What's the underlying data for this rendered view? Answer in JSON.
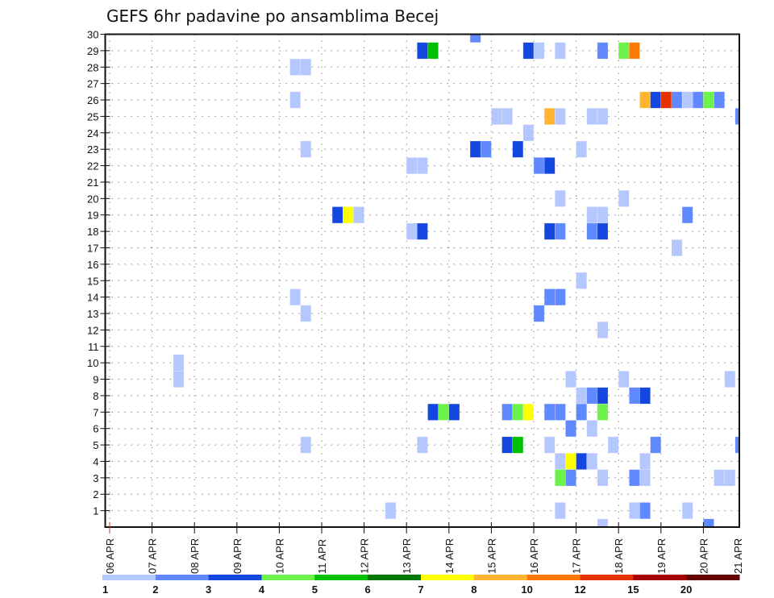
{
  "chart_data": {
    "type": "heatmap",
    "title": "GEFS 6hr padavine po ansamblima Becej",
    "xlabel": "",
    "ylabel": "",
    "x_unit": "6-hour step from 06 APR 00",
    "y_unit": "ensemble member",
    "xlim_days": [
      0,
      15
    ],
    "ylim": [
      0,
      30
    ],
    "grid": true,
    "xticks": [
      "06 APR",
      "07 APR",
      "08 APR",
      "09 APR",
      "10 APR",
      "11 APR",
      "12 APR",
      "13 APR",
      "14 APR",
      "15 APR",
      "16 APR",
      "17 APR",
      "18 APR",
      "19 APR",
      "20 APR",
      "21 APR"
    ],
    "yticks": [
      1,
      2,
      3,
      4,
      5,
      6,
      7,
      8,
      9,
      10,
      11,
      12,
      13,
      14,
      15,
      16,
      17,
      18,
      19,
      20,
      21,
      22,
      23,
      24,
      25,
      26,
      27,
      28,
      29,
      30
    ],
    "colorbar": {
      "levels": [
        1,
        2,
        3,
        4,
        5,
        6,
        7,
        8,
        10,
        12,
        15,
        20
      ],
      "colors": [
        "#b4c8ff",
        "#6088ff",
        "#1446e0",
        "#6cf24a",
        "#00be00",
        "#007800",
        "#ffff00",
        "#ffb432",
        "#ff7800",
        "#e63200",
        "#a50000",
        "#640000"
      ],
      "placement": "bottom"
    },
    "cells_columns": [
      "member",
      "step",
      "value_class"
    ],
    "cells": [
      [
        30,
        34,
        2
      ],
      [
        29,
        29,
        3
      ],
      [
        29,
        30,
        5
      ],
      [
        29,
        39,
        3
      ],
      [
        29,
        40,
        1
      ],
      [
        29,
        42,
        1
      ],
      [
        29,
        46,
        2
      ],
      [
        29,
        48,
        4
      ],
      [
        29,
        49,
        10
      ],
      [
        28,
        17,
        1
      ],
      [
        28,
        18,
        1
      ],
      [
        26,
        17,
        1
      ],
      [
        26,
        50,
        8
      ],
      [
        26,
        51,
        3
      ],
      [
        26,
        52,
        12
      ],
      [
        26,
        53,
        2
      ],
      [
        26,
        54,
        1
      ],
      [
        26,
        55,
        2
      ],
      [
        26,
        56,
        4
      ],
      [
        26,
        57,
        2
      ],
      [
        25,
        36,
        1
      ],
      [
        25,
        37,
        1
      ],
      [
        25,
        41,
        8
      ],
      [
        25,
        42,
        1
      ],
      [
        25,
        45,
        1
      ],
      [
        25,
        46,
        1
      ],
      [
        25,
        59,
        2
      ],
      [
        24,
        39,
        1
      ],
      [
        23,
        18,
        1
      ],
      [
        23,
        34,
        3
      ],
      [
        23,
        35,
        2
      ],
      [
        23,
        38,
        3
      ],
      [
        23,
        44,
        1
      ],
      [
        22,
        28,
        1
      ],
      [
        22,
        29,
        1
      ],
      [
        22,
        40,
        2
      ],
      [
        22,
        41,
        3
      ],
      [
        20,
        42,
        1
      ],
      [
        20,
        48,
        1
      ],
      [
        19,
        21,
        3
      ],
      [
        19,
        22,
        7
      ],
      [
        19,
        23,
        1
      ],
      [
        19,
        45,
        1
      ],
      [
        19,
        46,
        1
      ],
      [
        19,
        54,
        2
      ],
      [
        18,
        28,
        1
      ],
      [
        18,
        29,
        3
      ],
      [
        18,
        41,
        3
      ],
      [
        18,
        42,
        2
      ],
      [
        18,
        45,
        2
      ],
      [
        18,
        46,
        3
      ],
      [
        17,
        53,
        1
      ],
      [
        15,
        44,
        1
      ],
      [
        14,
        17,
        1
      ],
      [
        14,
        41,
        2
      ],
      [
        14,
        42,
        2
      ],
      [
        13,
        18,
        1
      ],
      [
        13,
        40,
        2
      ],
      [
        12,
        46,
        1
      ],
      [
        10,
        6,
        1
      ],
      [
        9,
        6,
        1
      ],
      [
        9,
        43,
        1
      ],
      [
        9,
        48,
        1
      ],
      [
        9,
        58,
        1
      ],
      [
        8,
        44,
        1
      ],
      [
        8,
        45,
        2
      ],
      [
        8,
        46,
        3
      ],
      [
        8,
        49,
        2
      ],
      [
        8,
        50,
        3
      ],
      [
        7,
        30,
        3
      ],
      [
        7,
        31,
        4
      ],
      [
        7,
        32,
        3
      ],
      [
        7,
        37,
        2
      ],
      [
        7,
        38,
        4
      ],
      [
        7,
        39,
        7
      ],
      [
        7,
        41,
        2
      ],
      [
        7,
        42,
        2
      ],
      [
        7,
        44,
        2
      ],
      [
        7,
        46,
        4
      ],
      [
        6,
        43,
        2
      ],
      [
        6,
        45,
        1
      ],
      [
        5,
        18,
        1
      ],
      [
        5,
        29,
        1
      ],
      [
        5,
        37,
        3
      ],
      [
        5,
        38,
        5
      ],
      [
        5,
        41,
        1
      ],
      [
        5,
        47,
        1
      ],
      [
        5,
        51,
        2
      ],
      [
        5,
        59,
        2
      ],
      [
        4,
        42,
        1
      ],
      [
        4,
        43,
        7
      ],
      [
        4,
        44,
        3
      ],
      [
        4,
        45,
        1
      ],
      [
        4,
        50,
        1
      ],
      [
        3,
        42,
        4
      ],
      [
        3,
        43,
        2
      ],
      [
        3,
        46,
        1
      ],
      [
        3,
        49,
        2
      ],
      [
        3,
        50,
        1
      ],
      [
        3,
        57,
        1
      ],
      [
        3,
        58,
        1
      ],
      [
        1,
        26,
        1
      ],
      [
        1,
        42,
        1
      ],
      [
        1,
        49,
        1
      ],
      [
        1,
        50,
        2
      ],
      [
        1,
        54,
        1
      ],
      [
        0,
        46,
        1
      ],
      [
        0,
        56,
        2
      ]
    ]
  }
}
